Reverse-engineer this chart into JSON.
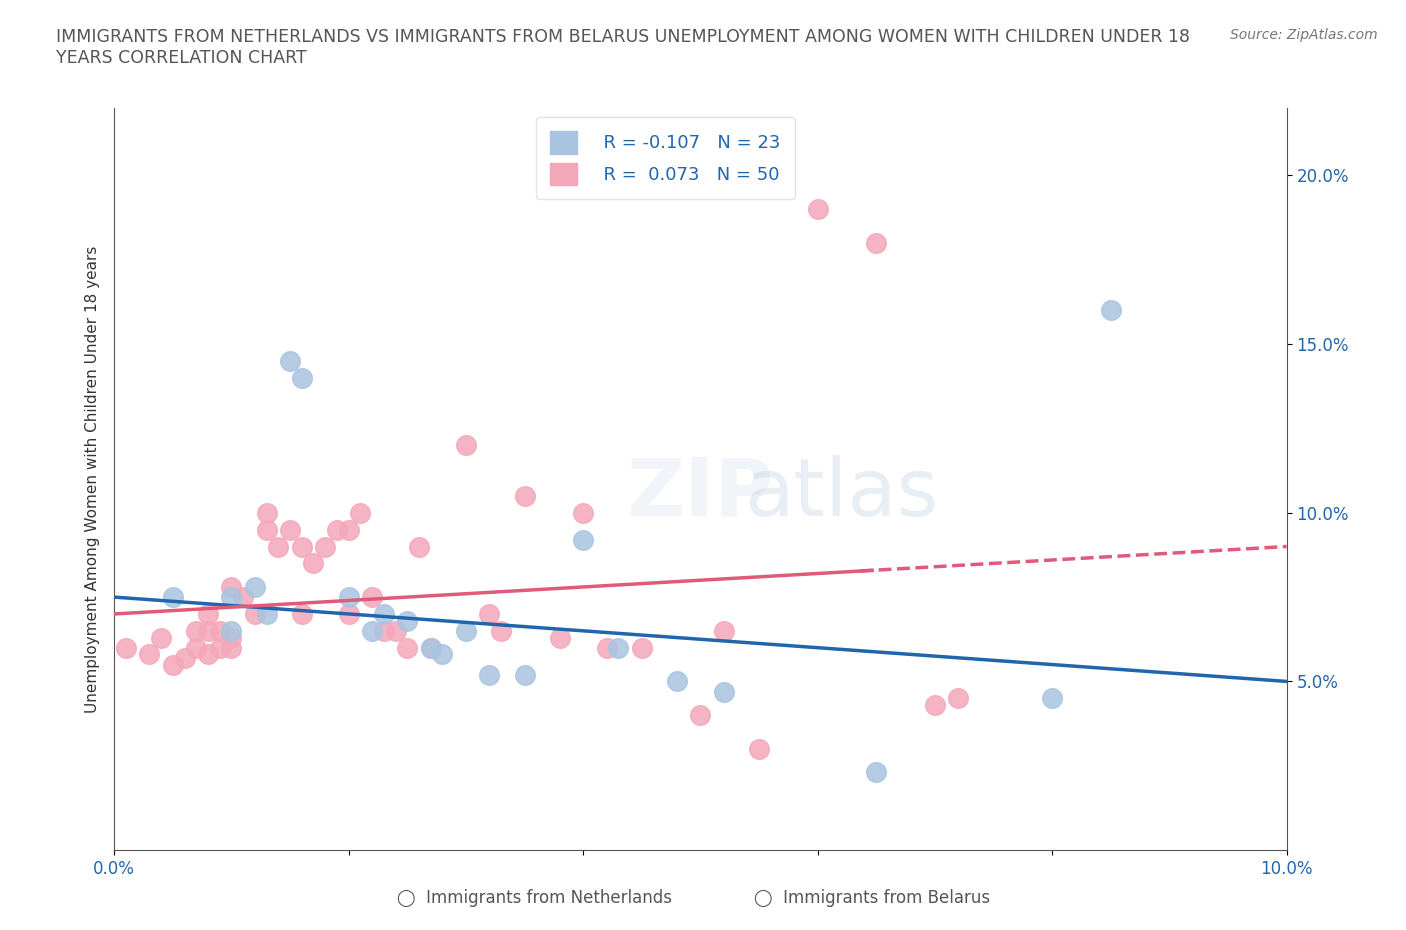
{
  "title": "IMMIGRANTS FROM NETHERLANDS VS IMMIGRANTS FROM BELARUS UNEMPLOYMENT AMONG WOMEN WITH CHILDREN UNDER 18\nYEARS CORRELATION CHART",
  "source_text": "Source: ZipAtlas.com",
  "xlabel": "",
  "ylabel": "Unemployment Among Women with Children Under 18 years",
  "xlim": [
    0.0,
    0.1
  ],
  "ylim": [
    0.0,
    0.22
  ],
  "xticks": [
    0.0,
    0.02,
    0.04,
    0.06,
    0.08,
    0.1
  ],
  "xticklabels": [
    "0.0%",
    "",
    "",
    "",
    "",
    "10.0%"
  ],
  "ytick_positions": [
    0.05,
    0.1,
    0.15,
    0.2
  ],
  "ytick_labels": [
    "5.0%",
    "10.0%",
    "15.0%",
    "20.0%"
  ],
  "r_netherlands": -0.107,
  "n_netherlands": 23,
  "r_belarus": 0.073,
  "n_belarus": 50,
  "color_netherlands": "#a8c4e0",
  "color_belarus": "#f4a7b9",
  "line_color_netherlands": "#2166ac",
  "line_color_belarus": "#e05a7a",
  "watermark": "ZIPatlas",
  "netherlands_x": [
    0.005,
    0.01,
    0.01,
    0.012,
    0.013,
    0.015,
    0.016,
    0.02,
    0.022,
    0.023,
    0.025,
    0.027,
    0.028,
    0.03,
    0.032,
    0.035,
    0.04,
    0.043,
    0.048,
    0.052,
    0.065,
    0.08,
    0.085
  ],
  "netherlands_y": [
    0.075,
    0.075,
    0.065,
    0.078,
    0.07,
    0.145,
    0.14,
    0.075,
    0.065,
    0.07,
    0.068,
    0.06,
    0.058,
    0.065,
    0.052,
    0.052,
    0.092,
    0.06,
    0.05,
    0.047,
    0.023,
    0.045,
    0.16
  ],
  "belarus_x": [
    0.001,
    0.003,
    0.004,
    0.005,
    0.006,
    0.007,
    0.007,
    0.008,
    0.008,
    0.008,
    0.009,
    0.009,
    0.01,
    0.01,
    0.01,
    0.011,
    0.012,
    0.013,
    0.013,
    0.014,
    0.015,
    0.016,
    0.016,
    0.017,
    0.018,
    0.019,
    0.02,
    0.02,
    0.021,
    0.022,
    0.023,
    0.024,
    0.025,
    0.026,
    0.027,
    0.03,
    0.032,
    0.033,
    0.035,
    0.038,
    0.04,
    0.042,
    0.045,
    0.05,
    0.052,
    0.055,
    0.06,
    0.065,
    0.07,
    0.072
  ],
  "belarus_y": [
    0.06,
    0.058,
    0.063,
    0.055,
    0.057,
    0.06,
    0.065,
    0.058,
    0.065,
    0.07,
    0.06,
    0.065,
    0.06,
    0.063,
    0.078,
    0.075,
    0.07,
    0.095,
    0.1,
    0.09,
    0.095,
    0.07,
    0.09,
    0.085,
    0.09,
    0.095,
    0.095,
    0.07,
    0.1,
    0.075,
    0.065,
    0.065,
    0.06,
    0.09,
    0.06,
    0.12,
    0.07,
    0.065,
    0.105,
    0.063,
    0.1,
    0.06,
    0.06,
    0.04,
    0.065,
    0.03,
    0.19,
    0.18,
    0.043,
    0.045
  ]
}
